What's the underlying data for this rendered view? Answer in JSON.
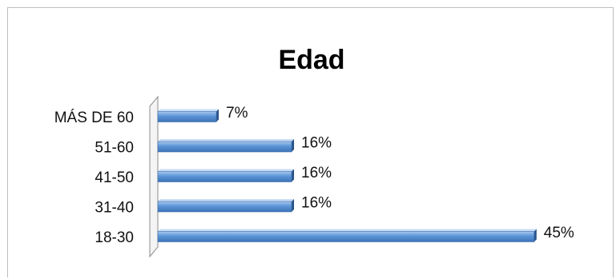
{
  "chart_data": {
    "type": "bar",
    "orientation": "horizontal",
    "title": "Edad",
    "categories": [
      "MÁS DE 60",
      "51-60",
      "41-50",
      "31-40",
      "18-30"
    ],
    "values": [
      7,
      16,
      16,
      16,
      45
    ],
    "value_labels": [
      "7%",
      "16%",
      "16%",
      "16%",
      "45%"
    ],
    "unit": "%",
    "style": "3d",
    "bar_color": "#5b9bd5",
    "legend": "none",
    "grid": false
  }
}
